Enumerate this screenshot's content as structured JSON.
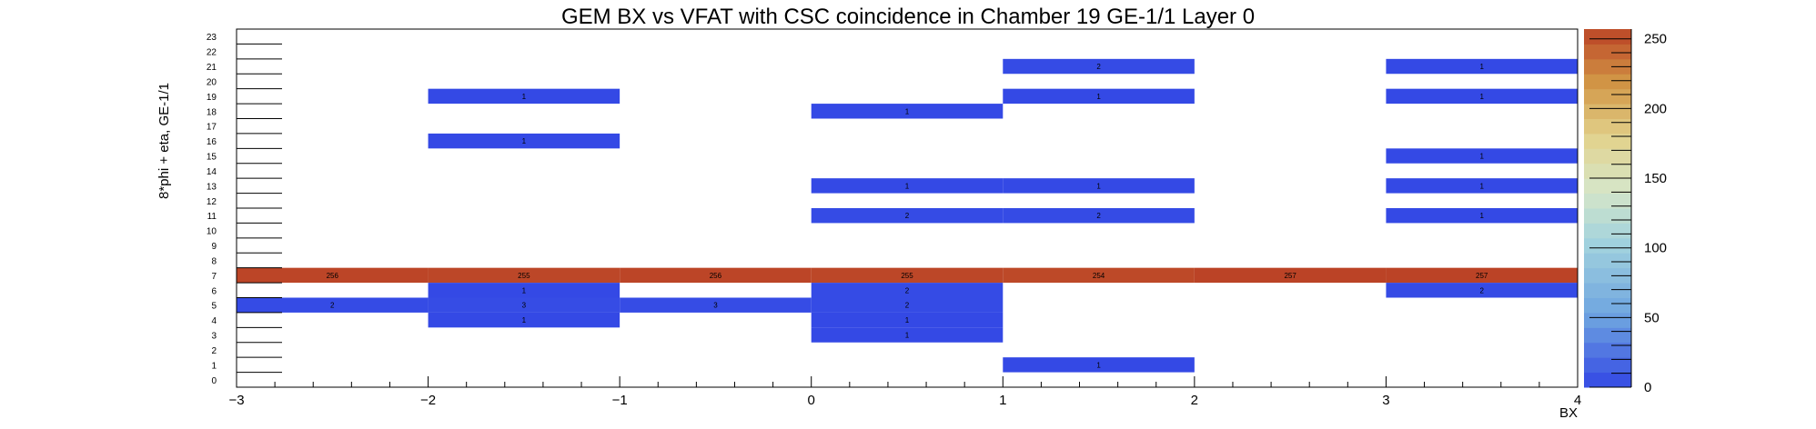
{
  "chart_data": {
    "type": "heatmap",
    "title": "GEM BX vs VFAT with CSC coincidence in Chamber 19 GE-1/1 Layer 0",
    "xlabel": "BX",
    "ylabel": "8*phi + eta, GE-1/1",
    "xlim": [
      -3,
      4
    ],
    "ylim": [
      0,
      24
    ],
    "x_ticks": [
      "−3",
      "−2",
      "−1",
      "0",
      "1",
      "2",
      "3",
      "4"
    ],
    "y_ticks": [
      "0",
      "1",
      "2",
      "3",
      "4",
      "5",
      "6",
      "7",
      "8",
      "9",
      "10",
      "11",
      "12",
      "13",
      "14",
      "15",
      "16",
      "17",
      "18",
      "19",
      "20",
      "21",
      "22",
      "23"
    ],
    "colorbar": {
      "min": 0,
      "max": 257,
      "ticks": [
        "0",
        "50",
        "100",
        "150",
        "200",
        "250"
      ]
    },
    "cells": [
      {
        "x0": -3,
        "x1": -2,
        "y": 7,
        "value": 256
      },
      {
        "x0": -2,
        "x1": -1,
        "y": 7,
        "value": 255
      },
      {
        "x0": -1,
        "x1": 0,
        "y": 7,
        "value": 256
      },
      {
        "x0": 0,
        "x1": 1,
        "y": 7,
        "value": 255
      },
      {
        "x0": 1,
        "x1": 2,
        "y": 7,
        "value": 254
      },
      {
        "x0": 2,
        "x1": 3,
        "y": 7,
        "value": 257
      },
      {
        "x0": 3,
        "x1": 4,
        "y": 7,
        "value": 257
      },
      {
        "x0": -3,
        "x1": -2,
        "y": 5,
        "value": 2
      },
      {
        "x0": -2,
        "x1": -1,
        "y": 6,
        "value": 1
      },
      {
        "x0": -2,
        "x1": -1,
        "y": 5,
        "value": 3
      },
      {
        "x0": -2,
        "x1": -1,
        "y": 4,
        "value": 1
      },
      {
        "x0": -1,
        "x1": 0,
        "y": 5,
        "value": 3
      },
      {
        "x0": 0,
        "x1": 1,
        "y": 6,
        "value": 2
      },
      {
        "x0": 0,
        "x1": 1,
        "y": 5,
        "value": 2
      },
      {
        "x0": 0,
        "x1": 1,
        "y": 4,
        "value": 1
      },
      {
        "x0": 0,
        "x1": 1,
        "y": 3,
        "value": 1
      },
      {
        "x0": 3,
        "x1": 4,
        "y": 6,
        "value": 2
      },
      {
        "x0": 1,
        "x1": 2,
        "y": 1,
        "value": 1
      },
      {
        "x0": -2,
        "x1": -1,
        "y": 19,
        "value": 1
      },
      {
        "x0": -2,
        "x1": -1,
        "y": 16,
        "value": 1
      },
      {
        "x0": 0,
        "x1": 1,
        "y": 18,
        "value": 1
      },
      {
        "x0": 0,
        "x1": 1,
        "y": 13,
        "value": 1
      },
      {
        "x0": 0,
        "x1": 1,
        "y": 11,
        "value": 2
      },
      {
        "x0": 1,
        "x1": 2,
        "y": 21,
        "value": 2
      },
      {
        "x0": 1,
        "x1": 2,
        "y": 19,
        "value": 1
      },
      {
        "x0": 1,
        "x1": 2,
        "y": 13,
        "value": 1
      },
      {
        "x0": 1,
        "x1": 2,
        "y": 11,
        "value": 2
      },
      {
        "x0": 3,
        "x1": 4,
        "y": 21,
        "value": 1
      },
      {
        "x0": 3,
        "x1": 4,
        "y": 19,
        "value": 1
      },
      {
        "x0": 3,
        "x1": 4,
        "y": 15,
        "value": 1
      },
      {
        "x0": 3,
        "x1": 4,
        "y": 13,
        "value": 1
      },
      {
        "x0": 3,
        "x1": 4,
        "y": 11,
        "value": 1
      }
    ]
  }
}
